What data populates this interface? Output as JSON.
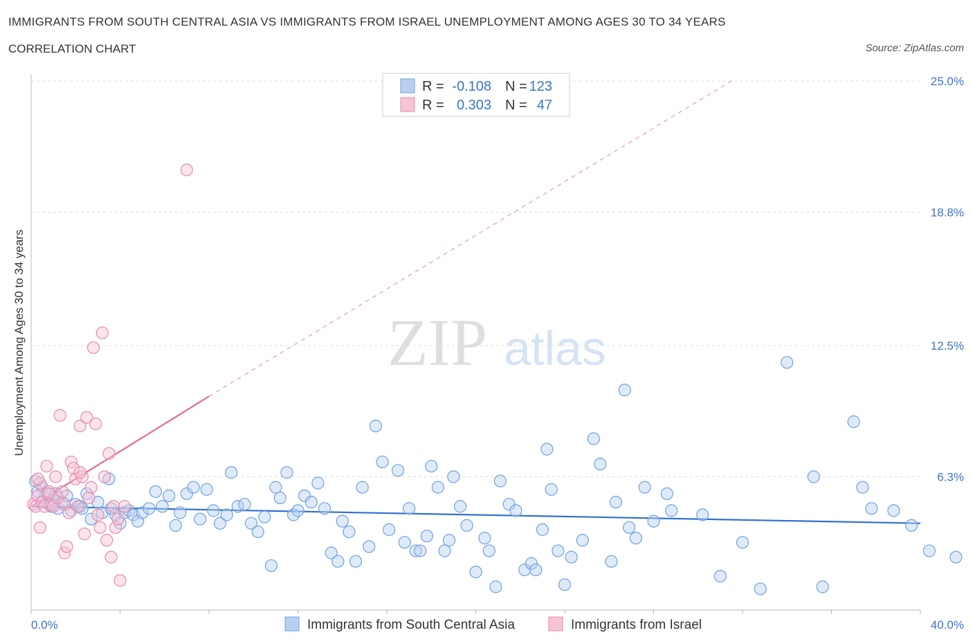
{
  "title": "IMMIGRANTS FROM SOUTH CENTRAL ASIA VS IMMIGRANTS FROM ISRAEL UNEMPLOYMENT AMONG AGES 30 TO 34 YEARS",
  "subtitle": "CORRELATION CHART",
  "source": "Source: ZipAtlas.com",
  "watermark": {
    "zip": "ZIP",
    "atlas": "atlas"
  },
  "colors": {
    "blue": "#6fa0e0",
    "blue_fill": "#b8d0f2",
    "blue_line": "#2f6fd1",
    "pink": "#e88aaa",
    "pink_fill": "#f6c4d4",
    "pink_line": "#e46b93",
    "axis_text": "#3a74c4",
    "grid": "#dcdcdc"
  },
  "legend": {
    "rows": [
      {
        "r_label": "R =",
        "r_value": "-0.108",
        "n_label": "N =",
        "n_value": "123",
        "color": "blue"
      },
      {
        "r_label": "R =",
        "r_value": "0.303",
        "n_label": "N =",
        "n_value": "47",
        "color": "pink"
      }
    ]
  },
  "chart_data": {
    "type": "scatter",
    "title": "IMMIGRANTS FROM SOUTH CENTRAL ASIA VS IMMIGRANTS FROM ISRAEL UNEMPLOYMENT AMONG AGES 30 TO 34 YEARS",
    "xlabel": "",
    "ylabel": "Unemployment Among Ages 30 to 34 years",
    "xlim": [
      0,
      40
    ],
    "ylim": [
      0,
      25
    ],
    "x_tick_labels": [
      "0.0%",
      "40.0%"
    ],
    "y_ticks": [
      6.3,
      12.5,
      18.8,
      25.0
    ],
    "y_tick_labels": [
      "6.3%",
      "12.5%",
      "18.8%",
      "25.0%"
    ],
    "grid": true,
    "legend_position": "top-center",
    "series": [
      {
        "name": "Immigrants from South Central Asia",
        "color": "blue",
        "trend": {
          "x": [
            0,
            40
          ],
          "y": [
            4.9,
            4.1
          ],
          "style": "solid"
        },
        "points": [
          [
            0.2,
            6.1
          ],
          [
            0.5,
            5.8
          ],
          [
            0.6,
            5.3
          ],
          [
            0.7,
            5.5
          ],
          [
            0.8,
            5.0
          ],
          [
            0.9,
            4.9
          ],
          [
            1.0,
            5.2
          ],
          [
            1.2,
            4.8
          ],
          [
            1.4,
            5.1
          ],
          [
            1.6,
            5.4
          ],
          [
            1.8,
            4.7
          ],
          [
            2.0,
            5.0
          ],
          [
            2.2,
            4.9
          ],
          [
            2.5,
            5.5
          ],
          [
            2.7,
            4.3
          ],
          [
            3.0,
            5.1
          ],
          [
            3.2,
            4.6
          ],
          [
            3.5,
            6.2
          ],
          [
            3.6,
            4.8
          ],
          [
            3.8,
            4.5
          ],
          [
            4.0,
            4.1
          ],
          [
            4.2,
            4.6
          ],
          [
            4.4,
            4.7
          ],
          [
            4.6,
            4.5
          ],
          [
            4.8,
            4.2
          ],
          [
            5.0,
            4.6
          ],
          [
            5.3,
            4.8
          ],
          [
            5.6,
            5.6
          ],
          [
            5.9,
            4.9
          ],
          [
            6.2,
            5.4
          ],
          [
            6.5,
            4.0
          ],
          [
            6.7,
            4.6
          ],
          [
            7.0,
            5.5
          ],
          [
            7.3,
            5.8
          ],
          [
            7.6,
            4.3
          ],
          [
            7.9,
            5.7
          ],
          [
            8.2,
            4.7
          ],
          [
            8.5,
            4.1
          ],
          [
            8.8,
            4.5
          ],
          [
            9.0,
            6.5
          ],
          [
            9.3,
            4.9
          ],
          [
            9.6,
            5.0
          ],
          [
            9.9,
            4.1
          ],
          [
            10.2,
            3.7
          ],
          [
            10.5,
            4.4
          ],
          [
            10.8,
            2.1
          ],
          [
            11.0,
            5.8
          ],
          [
            11.2,
            5.3
          ],
          [
            11.5,
            6.5
          ],
          [
            11.8,
            4.5
          ],
          [
            12.0,
            4.7
          ],
          [
            12.3,
            5.4
          ],
          [
            12.6,
            5.1
          ],
          [
            12.9,
            6.0
          ],
          [
            13.2,
            4.8
          ],
          [
            13.5,
            2.7
          ],
          [
            13.8,
            2.3
          ],
          [
            14.0,
            4.2
          ],
          [
            14.3,
            3.7
          ],
          [
            14.6,
            2.3
          ],
          [
            14.9,
            5.8
          ],
          [
            15.2,
            3.0
          ],
          [
            15.5,
            8.7
          ],
          [
            15.8,
            7.0
          ],
          [
            16.1,
            3.8
          ],
          [
            16.5,
            6.6
          ],
          [
            16.8,
            3.2
          ],
          [
            17.0,
            4.8
          ],
          [
            17.3,
            2.8
          ],
          [
            17.5,
            2.8
          ],
          [
            17.8,
            3.5
          ],
          [
            18.0,
            6.8
          ],
          [
            18.3,
            5.8
          ],
          [
            18.6,
            2.8
          ],
          [
            18.8,
            3.3
          ],
          [
            19.0,
            6.3
          ],
          [
            19.3,
            4.9
          ],
          [
            19.6,
            4.0
          ],
          [
            20.0,
            1.8
          ],
          [
            20.4,
            3.4
          ],
          [
            20.6,
            2.8
          ],
          [
            20.9,
            1.1
          ],
          [
            21.1,
            6.1
          ],
          [
            21.5,
            5.0
          ],
          [
            21.8,
            4.7
          ],
          [
            22.2,
            1.9
          ],
          [
            22.5,
            2.2
          ],
          [
            22.7,
            1.9
          ],
          [
            23.0,
            3.8
          ],
          [
            23.2,
            7.6
          ],
          [
            23.4,
            5.7
          ],
          [
            23.7,
            2.8
          ],
          [
            24.0,
            1.2
          ],
          [
            24.3,
            2.5
          ],
          [
            24.8,
            3.3
          ],
          [
            25.3,
            8.1
          ],
          [
            25.6,
            6.9
          ],
          [
            26.1,
            2.3
          ],
          [
            26.3,
            5.1
          ],
          [
            26.7,
            10.4
          ],
          [
            26.9,
            3.9
          ],
          [
            27.2,
            3.4
          ],
          [
            27.6,
            5.8
          ],
          [
            28.0,
            4.2
          ],
          [
            28.6,
            5.5
          ],
          [
            28.8,
            4.7
          ],
          [
            30.2,
            4.5
          ],
          [
            31.0,
            1.6
          ],
          [
            32.0,
            3.2
          ],
          [
            32.8,
            1.0
          ],
          [
            34.0,
            11.7
          ],
          [
            35.2,
            6.3
          ],
          [
            35.6,
            1.1
          ],
          [
            37.0,
            8.9
          ],
          [
            37.4,
            5.8
          ],
          [
            37.8,
            4.8
          ],
          [
            38.8,
            4.7
          ],
          [
            39.6,
            4.0
          ],
          [
            40.4,
            2.8
          ],
          [
            41.6,
            2.5
          ],
          [
            0.3,
            5.6
          ],
          [
            1.1,
            5.5
          ],
          [
            2.3,
            4.8
          ]
        ]
      },
      {
        "name": "Immigrants from Israel",
        "color": "pink",
        "trend": {
          "x": [
            0,
            8.0
          ],
          "y": [
            4.9,
            10.1
          ],
          "style": "solid",
          "extended": {
            "x": [
              8.0,
              31.5
            ],
            "y": [
              10.1,
              25.0
            ],
            "style": "dashed"
          }
        },
        "points": [
          [
            0.1,
            5.0
          ],
          [
            0.2,
            4.9
          ],
          [
            0.3,
            5.4
          ],
          [
            0.4,
            6.0
          ],
          [
            0.5,
            5.1
          ],
          [
            0.6,
            4.9
          ],
          [
            0.7,
            6.8
          ],
          [
            0.8,
            5.6
          ],
          [
            0.9,
            5.0
          ],
          [
            1.0,
            4.9
          ],
          [
            1.1,
            6.3
          ],
          [
            1.2,
            5.3
          ],
          [
            1.3,
            9.2
          ],
          [
            1.4,
            5.6
          ],
          [
            1.5,
            2.7
          ],
          [
            1.6,
            3.0
          ],
          [
            1.7,
            4.6
          ],
          [
            1.8,
            7.0
          ],
          [
            1.9,
            6.7
          ],
          [
            2.0,
            6.2
          ],
          [
            2.1,
            4.9
          ],
          [
            2.2,
            8.7
          ],
          [
            2.3,
            6.3
          ],
          [
            2.4,
            3.6
          ],
          [
            2.5,
            9.1
          ],
          [
            2.6,
            5.3
          ],
          [
            2.7,
            5.8
          ],
          [
            2.8,
            12.4
          ],
          [
            2.9,
            8.8
          ],
          [
            3.0,
            4.5
          ],
          [
            3.1,
            3.9
          ],
          [
            3.2,
            13.1
          ],
          [
            3.3,
            6.3
          ],
          [
            3.4,
            3.3
          ],
          [
            3.5,
            7.4
          ],
          [
            3.6,
            2.5
          ],
          [
            3.7,
            4.9
          ],
          [
            3.8,
            3.9
          ],
          [
            3.9,
            4.3
          ],
          [
            4.0,
            1.4
          ],
          [
            4.2,
            4.9
          ],
          [
            0.4,
            3.9
          ],
          [
            0.8,
            5.5
          ],
          [
            1.5,
            5.0
          ],
          [
            2.2,
            6.5
          ],
          [
            7.0,
            20.8
          ],
          [
            0.3,
            6.2
          ]
        ]
      }
    ]
  },
  "bottom_legend": [
    {
      "label": "Immigrants from South Central Asia",
      "color": "blue"
    },
    {
      "label": "Immigrants from Israel",
      "color": "pink"
    }
  ]
}
